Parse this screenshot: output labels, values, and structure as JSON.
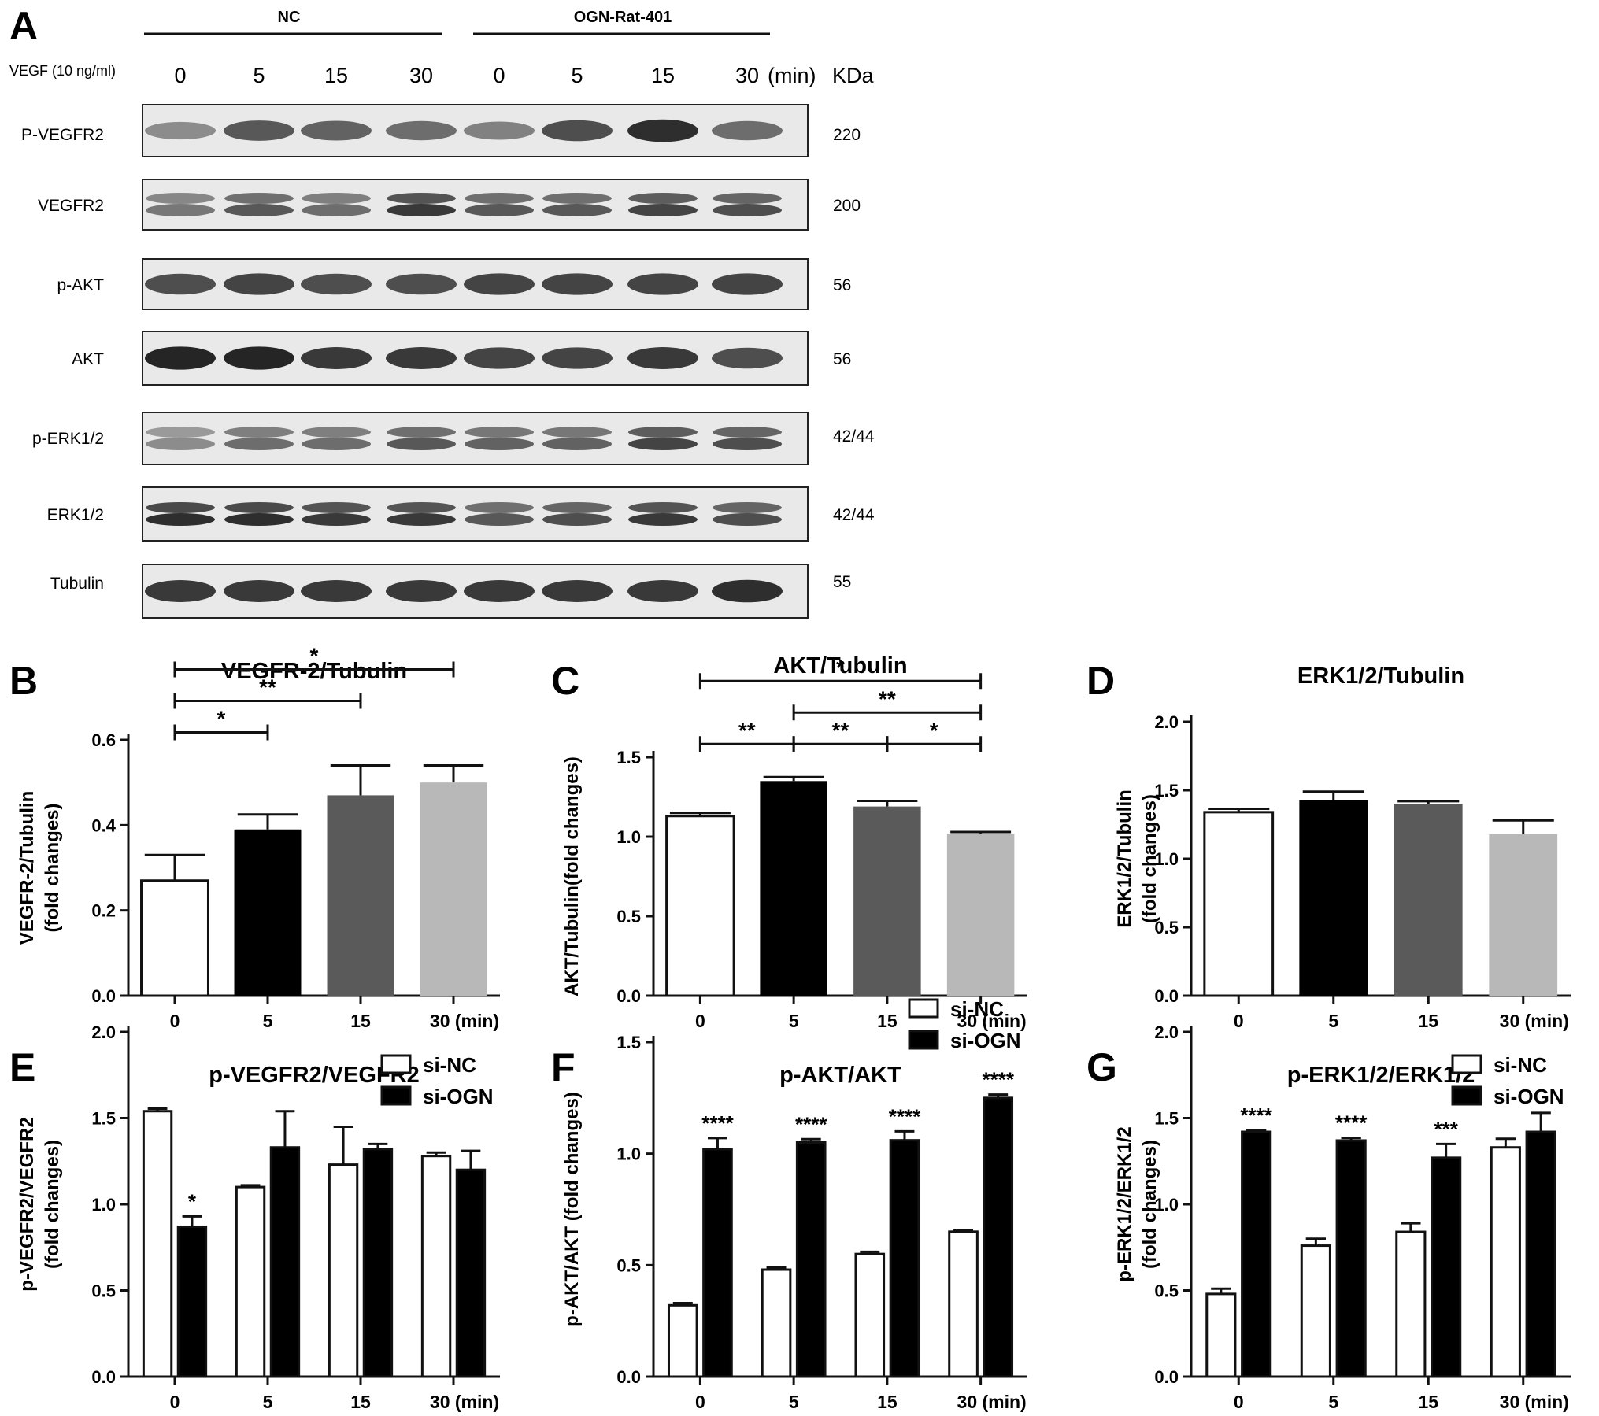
{
  "panel_a": {
    "letter": "A",
    "group_nc": "NC",
    "group_ogn": "OGN-Rat-401",
    "vegf_label": "VEGF (10 ng/ml)",
    "times": [
      "0",
      "5",
      "15",
      "30",
      "0",
      "5",
      "15",
      "30"
    ],
    "min_label": "(min)",
    "kda_label": "KDa",
    "rows": [
      {
        "label": "P-VEGFR2",
        "kda": "220",
        "intensity": [
          0.45,
          0.7,
          0.65,
          0.6,
          0.5,
          0.75,
          0.9,
          0.6
        ]
      },
      {
        "label": "VEGFR2",
        "kda": "200",
        "intensity": [
          0.55,
          0.7,
          0.6,
          0.85,
          0.7,
          0.7,
          0.8,
          0.75
        ]
      },
      {
        "label": "p-AKT",
        "kda": "56",
        "intensity": [
          0.75,
          0.8,
          0.75,
          0.75,
          0.8,
          0.8,
          0.8,
          0.8
        ]
      },
      {
        "label": "AKT",
        "kda": "56",
        "intensity": [
          0.95,
          0.95,
          0.85,
          0.85,
          0.8,
          0.8,
          0.85,
          0.75
        ]
      },
      {
        "label": "p-ERK1/2",
        "kda": "42/44",
        "intensity": [
          0.45,
          0.6,
          0.6,
          0.7,
          0.65,
          0.65,
          0.8,
          0.75
        ]
      },
      {
        "label": "ERK1/2",
        "kda": "42/44",
        "intensity": [
          0.9,
          0.9,
          0.85,
          0.85,
          0.7,
          0.75,
          0.85,
          0.75
        ]
      },
      {
        "label": "Tubulin",
        "kda": "55",
        "intensity": [
          0.85,
          0.85,
          0.85,
          0.85,
          0.85,
          0.85,
          0.85,
          0.9
        ]
      }
    ]
  },
  "colors": {
    "bar_0": "#ffffff",
    "bar_5": "#000000",
    "bar_15": "#5a5a5a",
    "bar_30": "#b8b8b8",
    "si_nc": "#ffffff",
    "si_ogn": "#000000",
    "blot_band": "#1a1a1a"
  },
  "chart_data": [
    {
      "panel": "B",
      "type": "bar",
      "title": "VEGFR-2/Tubulin",
      "ylabel_lines": [
        "VEGFR-2/Tubulin",
        "(fold changes)"
      ],
      "categories": [
        "0",
        "5",
        "15",
        "30 (min)"
      ],
      "values": [
        0.27,
        0.39,
        0.47,
        0.5
      ],
      "errors": [
        0.06,
        0.035,
        0.07,
        0.04
      ],
      "ylim": [
        0,
        0.6
      ],
      "yticks": [
        "0.0",
        "0.2",
        "0.4",
        "0.6"
      ],
      "significance": [
        {
          "from": 0,
          "to": 1,
          "label": "*"
        },
        {
          "from": 0,
          "to": 2,
          "label": "**"
        },
        {
          "from": 0,
          "to": 3,
          "label": "*"
        }
      ]
    },
    {
      "panel": "C",
      "type": "bar",
      "title": "AKT/Tubulin",
      "ylabel_lines": [
        "AKT/Tubulin(fold changes)"
      ],
      "categories": [
        "0",
        "5",
        "15",
        "30 (min)"
      ],
      "values": [
        1.13,
        1.35,
        1.19,
        1.02
      ],
      "errors": [
        0.02,
        0.025,
        0.035,
        0.01
      ],
      "ylim": [
        0,
        1.5
      ],
      "yticks": [
        "0.0",
        "0.5",
        "1.0",
        "1.5"
      ],
      "significance": [
        {
          "from": 0,
          "to": 1,
          "label": "**"
        },
        {
          "from": 1,
          "to": 2,
          "label": "**"
        },
        {
          "from": 2,
          "to": 3,
          "label": "*"
        },
        {
          "from": 1,
          "to": 3,
          "label": "**"
        },
        {
          "from": 0,
          "to": 3,
          "label": "*"
        }
      ]
    },
    {
      "panel": "D",
      "type": "bar",
      "title": "ERK1/2/Tubulin",
      "ylabel_lines": [
        "ERK1/2/Tubulin",
        "(fold changes)"
      ],
      "categories": [
        "0",
        "5",
        "15",
        "30 (min)"
      ],
      "values": [
        1.34,
        1.43,
        1.4,
        1.18
      ],
      "errors": [
        0.025,
        0.06,
        0.02,
        0.1
      ],
      "ylim": [
        0,
        2.0
      ],
      "yticks": [
        "0.0",
        "0.5",
        "1.0",
        "1.5",
        "2.0"
      ],
      "significance": []
    },
    {
      "panel": "E",
      "type": "bar",
      "title": "p-VEGFR2/VEGFR2",
      "ylabel_lines": [
        "p-VEGFR2/VEGFR2",
        "(fold changes)"
      ],
      "categories": [
        "0",
        "5",
        "15",
        "30 (min)"
      ],
      "series": [
        {
          "name": "si-NC",
          "values": [
            1.54,
            1.1,
            1.23,
            1.28
          ],
          "errors": [
            0.015,
            0.01,
            0.22,
            0.02
          ]
        },
        {
          "name": "si-OGN",
          "values": [
            0.87,
            1.33,
            1.32,
            1.2
          ],
          "errors": [
            0.06,
            0.21,
            0.03,
            0.11
          ]
        }
      ],
      "ylim": [
        0,
        2.0
      ],
      "yticks": [
        "0.0",
        "0.5",
        "1.0",
        "1.5",
        "2.0"
      ],
      "stars": [
        "*",
        "",
        "",
        ""
      ],
      "legend": "top-right"
    },
    {
      "panel": "F",
      "type": "bar",
      "title": "p-AKT/AKT",
      "ylabel_lines": [
        "p-AKT/AKT (fold changes)"
      ],
      "categories": [
        "0",
        "5",
        "15",
        "30 (min)"
      ],
      "series": [
        {
          "name": "si-NC",
          "values": [
            0.32,
            0.48,
            0.55,
            0.65
          ],
          "errors": [
            0.01,
            0.01,
            0.01,
            0.005
          ]
        },
        {
          "name": "si-OGN",
          "values": [
            1.02,
            1.05,
            1.06,
            1.25
          ],
          "errors": [
            0.05,
            0.015,
            0.04,
            0.015
          ]
        }
      ],
      "ylim": [
        0,
        1.5
      ],
      "yticks": [
        "0.0",
        "0.5",
        "1.0",
        "1.5"
      ],
      "stars": [
        "****",
        "****",
        "****",
        "****"
      ],
      "legend": "top-right"
    },
    {
      "panel": "G",
      "type": "bar",
      "title": "p-ERK1/2/ERK1/2",
      "ylabel_lines": [
        "p-ERK1/2/ERK1/2",
        "(fold changes)"
      ],
      "categories": [
        "0",
        "5",
        "15",
        "30 (min)"
      ],
      "series": [
        {
          "name": "si-NC",
          "values": [
            0.48,
            0.76,
            0.84,
            1.33
          ],
          "errors": [
            0.03,
            0.04,
            0.05,
            0.05
          ]
        },
        {
          "name": "si-OGN",
          "values": [
            1.42,
            1.37,
            1.27,
            1.42
          ],
          "errors": [
            0.01,
            0.015,
            0.08,
            0.11
          ]
        }
      ],
      "ylim": [
        0,
        2.0
      ],
      "yticks": [
        "0.0",
        "0.5",
        "1.0",
        "1.5",
        "2.0"
      ],
      "stars": [
        "****",
        "****",
        "***",
        ""
      ],
      "legend": "top-right"
    }
  ]
}
